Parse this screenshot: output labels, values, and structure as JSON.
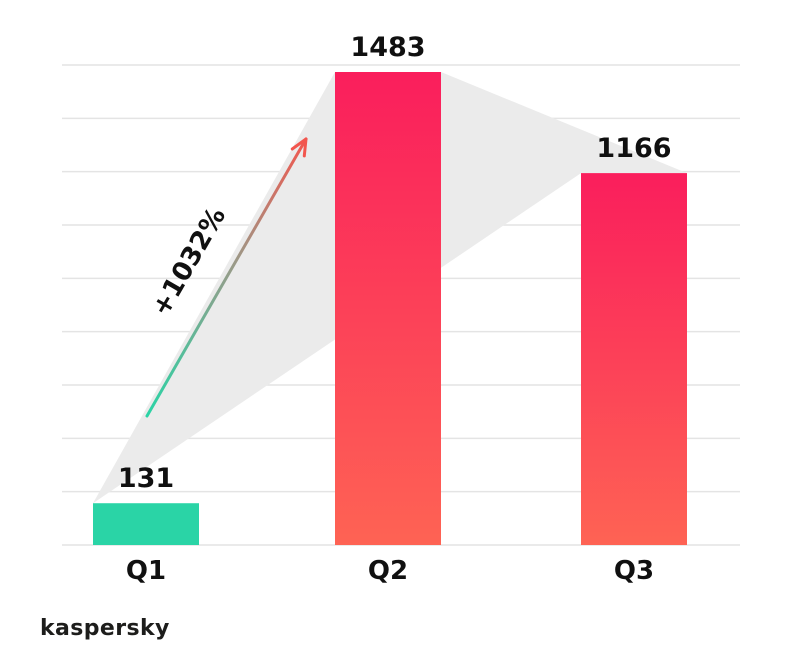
{
  "brand": {
    "logo_text": "kaspersky"
  },
  "colors": {
    "teal": "#2AD4A6",
    "pink_top": "#FA1E5C",
    "pink_bottom": "#FE6354",
    "area_fill": "#EBEBEB",
    "grid": "#E4E4E4",
    "text": "#101010",
    "arrow_head": "#F2564E",
    "arrow_mid": "#9A9A88"
  },
  "chart_data": {
    "type": "bar",
    "title": "",
    "xlabel": "",
    "ylabel": "",
    "categories": [
      "Q1",
      "Q2",
      "Q3"
    ],
    "values": [
      131,
      1483,
      1166
    ],
    "value_labels": [
      "131",
      "1483",
      "1166"
    ],
    "ylim": [
      0,
      1550
    ],
    "grid": true,
    "legend": false,
    "annotation": {
      "label": "+1032%",
      "from": "Q1",
      "to": "Q2",
      "style": "gradient-arrow"
    },
    "area_band": {
      "description": "gray ribbon connecting bar tops",
      "connects": [
        "Q1",
        "Q2",
        "Q3"
      ]
    }
  }
}
